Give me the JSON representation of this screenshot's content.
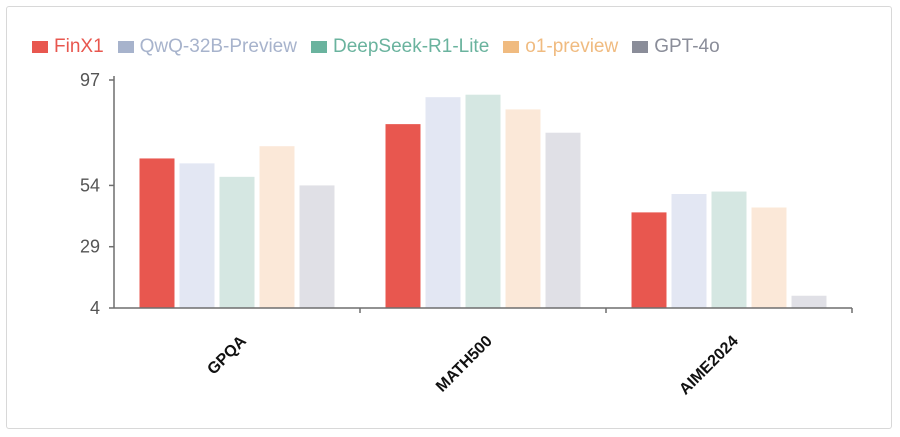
{
  "chart_data": {
    "type": "bar",
    "title": "",
    "xlabel": "",
    "ylabel": "",
    "categories": [
      "GPQA",
      "MATH500",
      "AIME2024"
    ],
    "ylim": [
      4,
      97
    ],
    "yticks": [
      4,
      29,
      54,
      97
    ],
    "legend_position": "top-left",
    "grid": false,
    "series": [
      {
        "name": "FinX1",
        "color": "#e8574f",
        "legend_text_color": "#e8574f",
        "values": [
          65.0,
          79.0,
          43.0
        ]
      },
      {
        "name": "QwQ-32B-Preview",
        "color": "#e3e7f3",
        "legend_text_color": "#a7b3cc",
        "values": [
          63.0,
          90.0,
          50.5
        ]
      },
      {
        "name": "DeepSeek-R1-Lite",
        "color": "#d5e7e2",
        "legend_text_color": "#6ab39e",
        "values": [
          57.5,
          91.0,
          51.5
        ]
      },
      {
        "name": "o1-preview",
        "color": "#fbe8d8",
        "legend_text_color": "#f0bb80",
        "values": [
          70.0,
          85.0,
          45.0
        ]
      },
      {
        "name": "GPT-4o",
        "color": "#e0e0e6",
        "legend_text_color": "#8a8d99",
        "values": [
          54.0,
          75.5,
          9.0
        ]
      }
    ]
  }
}
